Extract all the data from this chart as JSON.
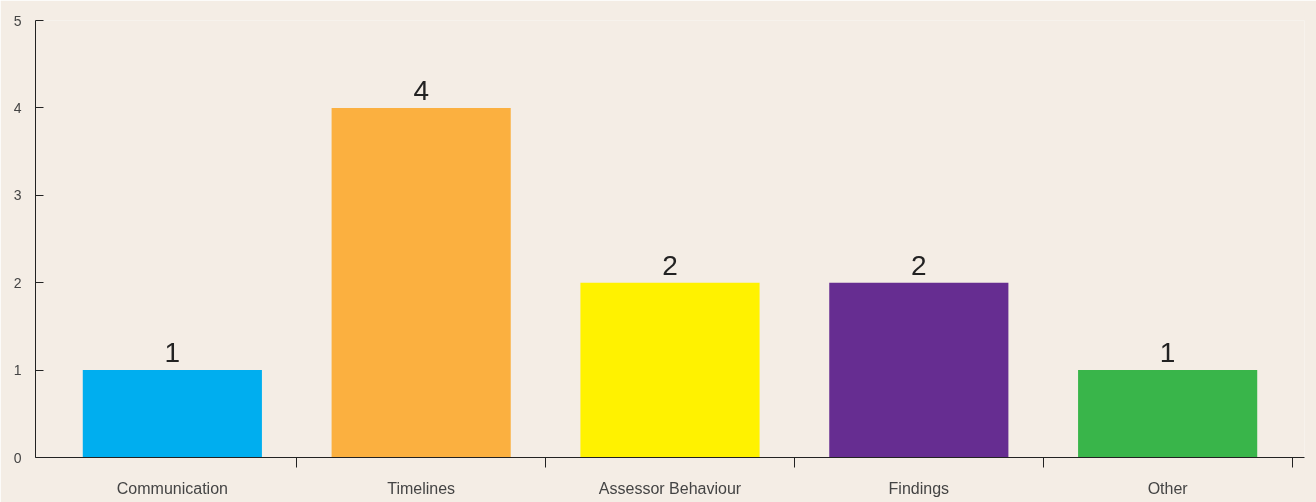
{
  "chart_data": {
    "type": "bar",
    "categories": [
      "Communication",
      "Timelines",
      "Assessor Behaviour",
      "Findings",
      "Other"
    ],
    "values": [
      1,
      4,
      2,
      2,
      1
    ],
    "colors": [
      "#00aeef",
      "#fbb040",
      "#fff200",
      "#662d91",
      "#39b54a"
    ],
    "ylim": [
      0,
      5
    ],
    "yticks": [
      0,
      1,
      2,
      3,
      4,
      5
    ],
    "data_labels": true,
    "grid": false
  }
}
